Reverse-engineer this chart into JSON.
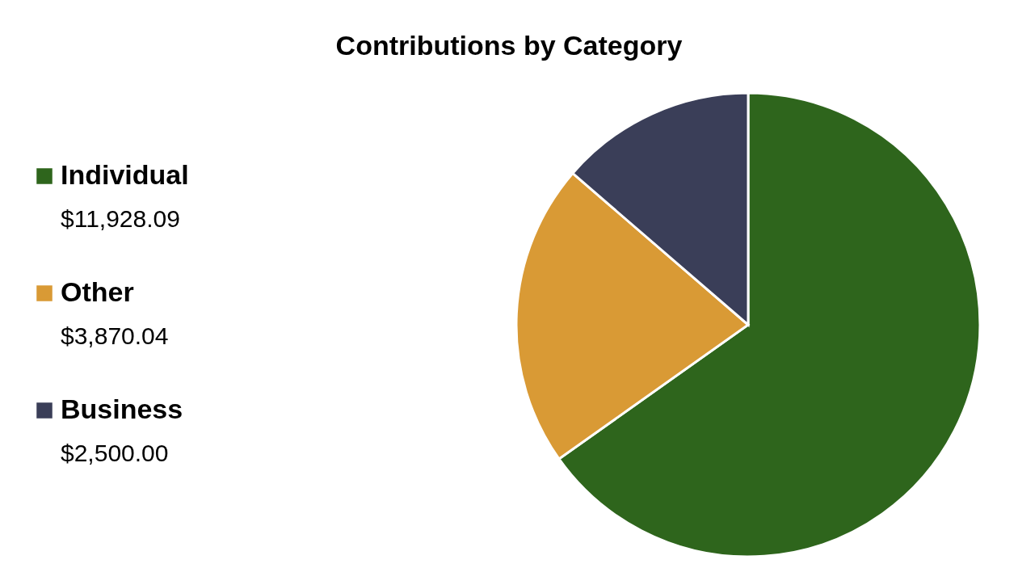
{
  "chart_data": {
    "type": "pie",
    "title": "Contributions by Category",
    "categories": [
      "Individual",
      "Other",
      "Business"
    ],
    "values": [
      11928.09,
      3870.04,
      2500.0
    ],
    "value_labels": [
      "$11,928.09",
      "$3,870.04",
      "$2,500.00"
    ],
    "colors": [
      "#2e651c",
      "#d99a35",
      "#3a3e58"
    ],
    "legend": "left"
  }
}
